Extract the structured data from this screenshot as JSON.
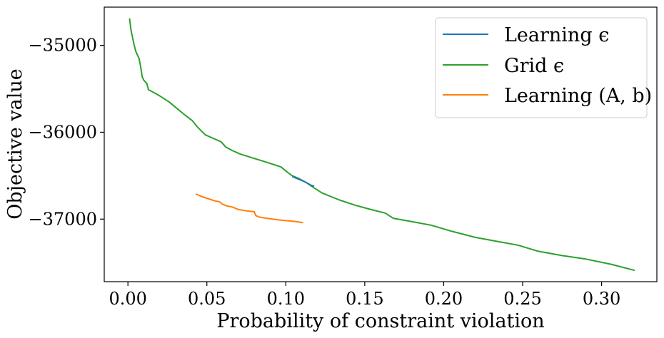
{
  "chart_data": {
    "type": "line",
    "title": "",
    "xlabel": "Probability of constraint violation",
    "ylabel": "Objective value",
    "xlim": [
      -0.015,
      0.335
    ],
    "ylim": [
      -37720,
      -34560
    ],
    "xticks": [
      0.0,
      0.05,
      0.1,
      0.15,
      0.2,
      0.25,
      0.3
    ],
    "xtick_labels": [
      "0.00",
      "0.05",
      "0.10",
      "0.15",
      "0.20",
      "0.25",
      "0.30"
    ],
    "yticks": [
      -37000,
      -36000,
      -35000
    ],
    "ytick_labels": [
      "−37000",
      "−36000",
      "−35000"
    ],
    "grid": false,
    "legend_position": "top-right",
    "series": [
      {
        "name": "Learning ϵ",
        "color": "#1f77b4",
        "x": [
          0.104,
          0.108,
          0.112,
          0.116,
          0.118
        ],
        "y": [
          -36510,
          -36540,
          -36570,
          -36610,
          -36620
        ]
      },
      {
        "name": "Grid ϵ",
        "color": "#2ca02c",
        "x": [
          0.001,
          0.002,
          0.004,
          0.005,
          0.007,
          0.008,
          0.009,
          0.01,
          0.012,
          0.013,
          0.016,
          0.02,
          0.026,
          0.032,
          0.036,
          0.041,
          0.044,
          0.049,
          0.054,
          0.059,
          0.062,
          0.066,
          0.071,
          0.078,
          0.085,
          0.092,
          0.097,
          0.101,
          0.104,
          0.108,
          0.11,
          0.113,
          0.117,
          0.123,
          0.134,
          0.144,
          0.154,
          0.163,
          0.168,
          0.18,
          0.192,
          0.205,
          0.22,
          0.235,
          0.247,
          0.26,
          0.275,
          0.29,
          0.306,
          0.321
        ],
        "y": [
          -34690,
          -34830,
          -35000,
          -35070,
          -35150,
          -35240,
          -35360,
          -35400,
          -35440,
          -35510,
          -35540,
          -35580,
          -35650,
          -35740,
          -35800,
          -35870,
          -35940,
          -36030,
          -36070,
          -36110,
          -36170,
          -36210,
          -36250,
          -36290,
          -36330,
          -36370,
          -36400,
          -36460,
          -36500,
          -36530,
          -36550,
          -36580,
          -36630,
          -36700,
          -36780,
          -36840,
          -36890,
          -36930,
          -36990,
          -37030,
          -37070,
          -37140,
          -37210,
          -37260,
          -37300,
          -37370,
          -37420,
          -37460,
          -37520,
          -37590
        ]
      },
      {
        "name": "Learning (A, b)",
        "color": "#ff7f0e",
        "x": [
          0.043,
          0.046,
          0.05,
          0.055,
          0.058,
          0.06,
          0.063,
          0.066,
          0.07,
          0.075,
          0.08,
          0.081,
          0.083,
          0.086,
          0.09,
          0.096,
          0.102,
          0.107,
          0.111
        ],
        "y": [
          -36710,
          -36735,
          -36760,
          -36790,
          -36800,
          -36830,
          -36850,
          -36860,
          -36890,
          -36905,
          -36915,
          -36960,
          -36975,
          -36985,
          -36995,
          -37010,
          -37020,
          -37030,
          -37040
        ]
      }
    ]
  }
}
